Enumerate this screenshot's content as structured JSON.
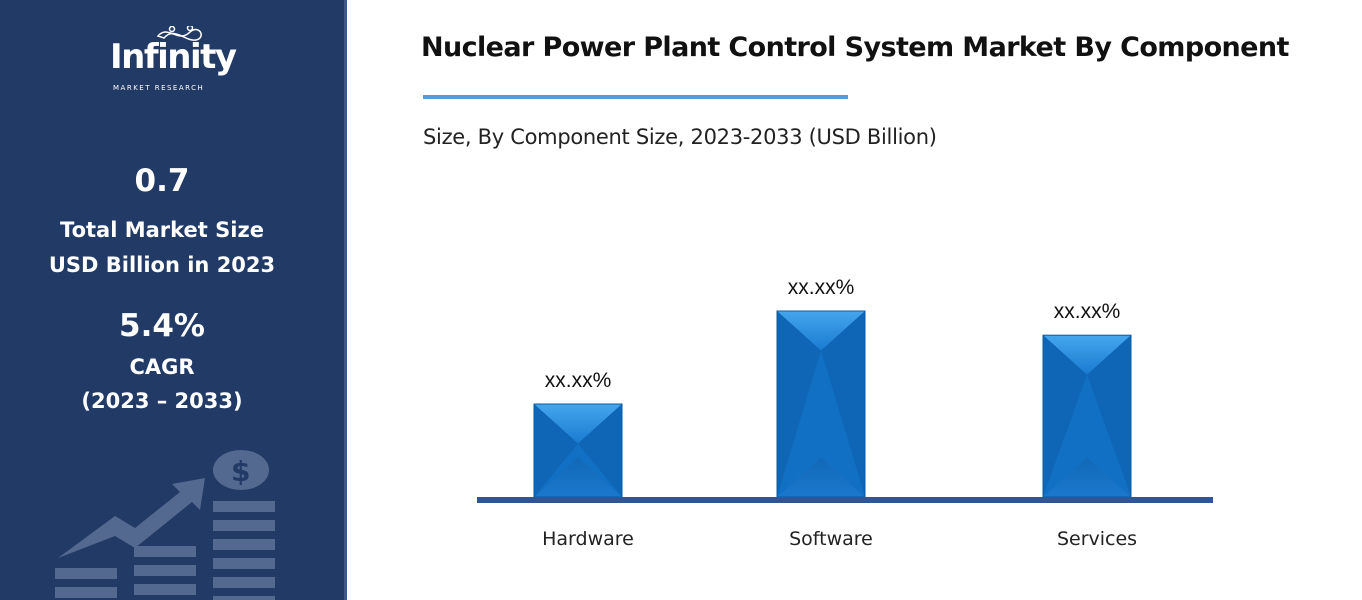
{
  "sidebar": {
    "logo_text": "Infinity",
    "logo_sub": "MARKET RESEARCH",
    "market_size": "0.7",
    "market_size_label1": "Total Market Size",
    "market_size_label2": "USD Billion in 2023",
    "cagr": "5.4%",
    "cagr_label": "CAGR",
    "cagr_period": "(2023 – 2033)"
  },
  "chart_data": {
    "type": "bar",
    "title": "Nuclear Power Plant Control System Market By Component",
    "subtitle": "Size, By Component Size, 2023-2033 (USD Billion)",
    "categories": [
      "Hardware",
      "Software",
      "Services"
    ],
    "values": [
      0.5,
      1.0,
      0.87
    ],
    "value_note": "relative bar heights (no axis shown)",
    "data_labels": [
      "xx.xx%",
      "xx.xx%",
      "xx.xx%"
    ],
    "xlabel": "",
    "ylabel": "",
    "grid": false,
    "colors": {
      "bar": "#1170c4",
      "bar_light": "#3a9be6",
      "axis": "#2f5597"
    }
  }
}
